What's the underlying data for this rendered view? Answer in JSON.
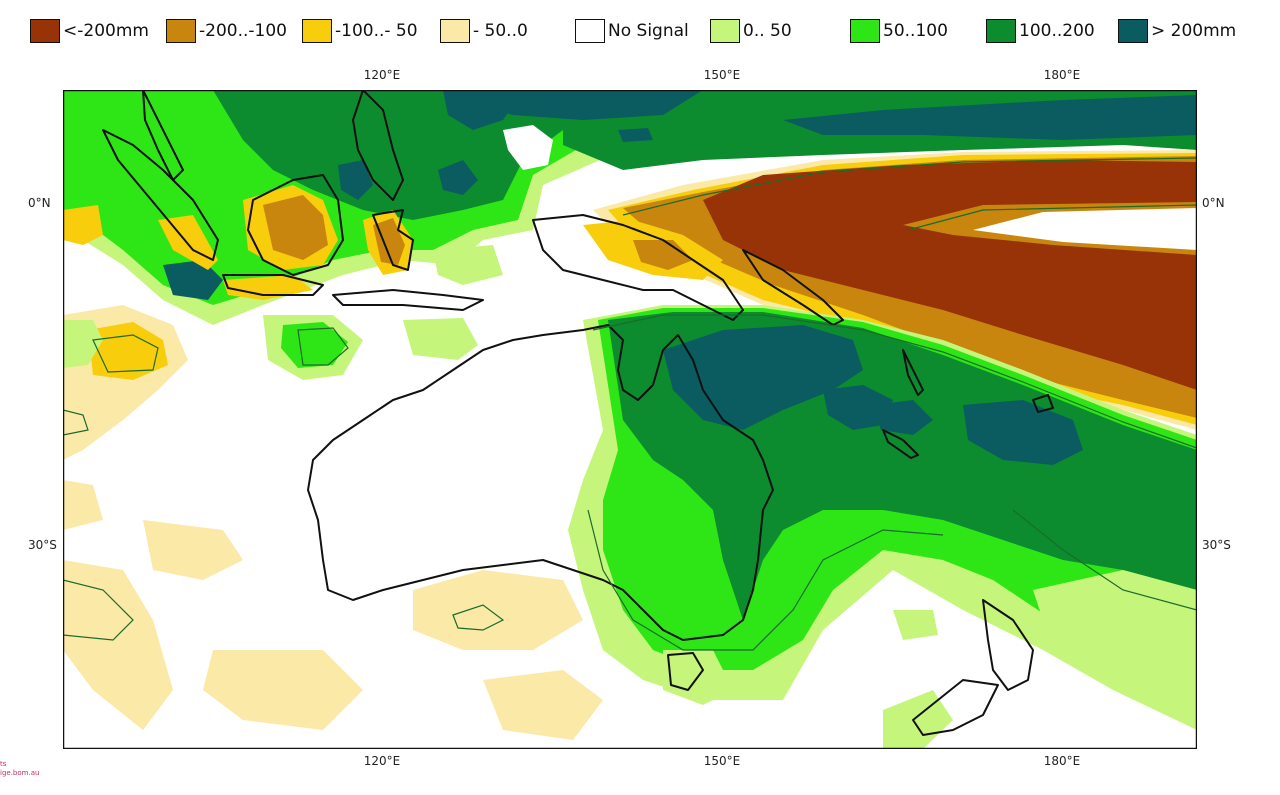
{
  "legend": {
    "items": [
      {
        "label": "<-200mm",
        "color": "#973306"
      },
      {
        "label": "-200..-100",
        "color": "#c9860e"
      },
      {
        "label": "-100..- 50",
        "color": "#f7cd0c"
      },
      {
        "label": "- 50..0",
        "color": "#fbe9a8"
      },
      {
        "label": "No Signal",
        "color": "#ffffff"
      },
      {
        "label": "0.. 50",
        "color": "#c6f57b"
      },
      {
        "label": "50..100",
        "color": "#2ee616"
      },
      {
        "label": "100..200",
        "color": "#0c8c2f"
      },
      {
        "label": "> 200mm",
        "color": "#0a5c60"
      }
    ]
  },
  "axes": {
    "lon_labels": [
      "120°E",
      "150°E",
      "180°E"
    ],
    "lat_labels": [
      "0°N",
      "30°S"
    ]
  },
  "credit": {
    "line1": "ts",
    "line2": "ige.bom.au"
  }
}
